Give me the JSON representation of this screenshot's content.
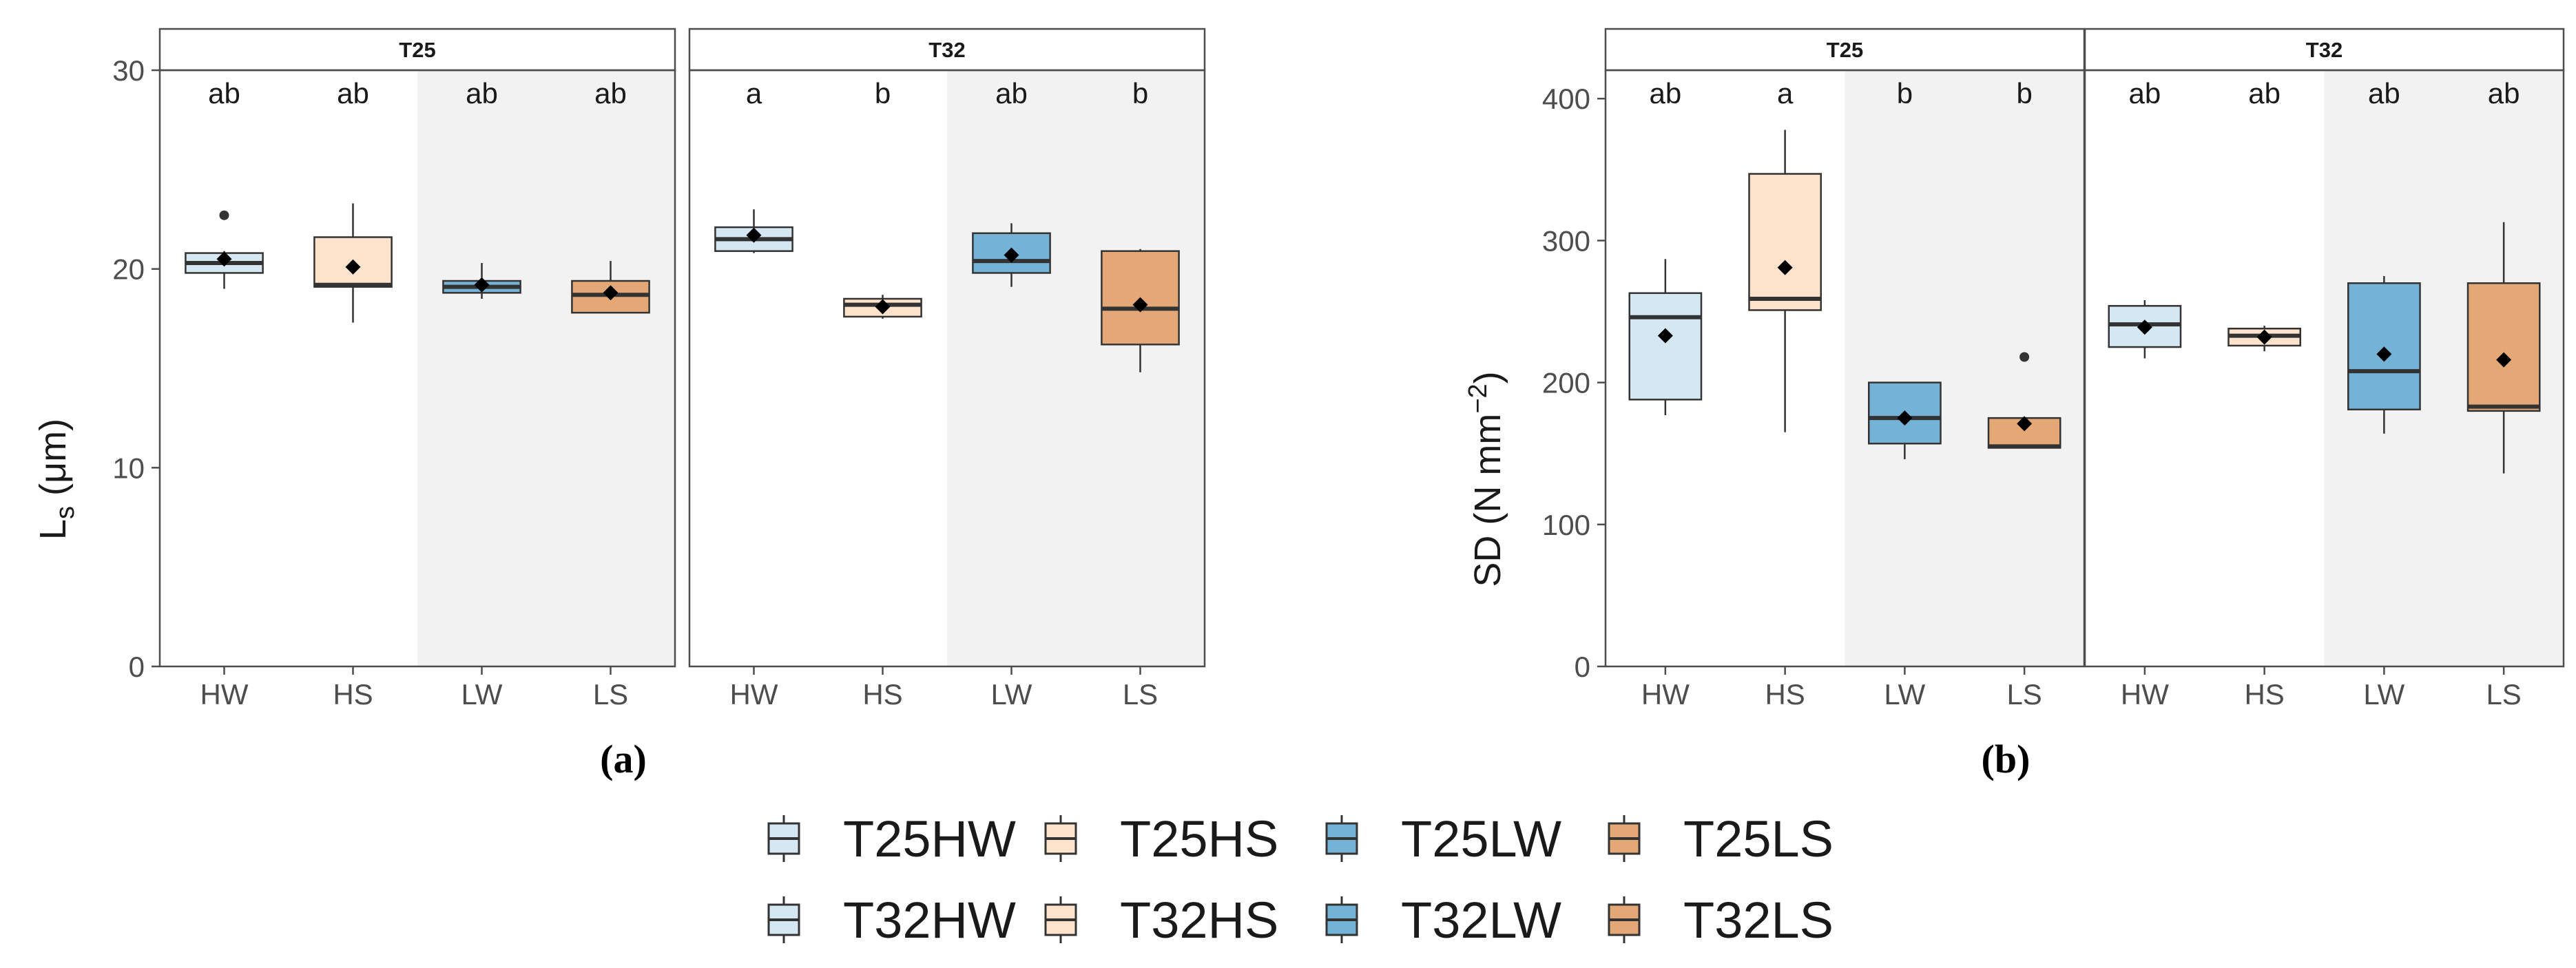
{
  "colors": {
    "HW": "#d4e7f3",
    "HS": "#fde3cc",
    "LW": "#74b2d6",
    "LS": "#e4a877",
    "shade": "#f2f2f2",
    "strip": "#ffffff",
    "border": "#4d4d4d",
    "median": "#333333",
    "text": "#1a1a1a",
    "axis_text": "#4d4d4d"
  },
  "chart_data": [
    {
      "id": "a",
      "type": "boxplot",
      "panel_label": "(a)",
      "ylabel_main": "L",
      "ylabel_sub": "s",
      "ylabel_unit": " (μm)",
      "ylim": [
        0,
        30
      ],
      "yticks": [
        0,
        10,
        20,
        30
      ],
      "categories": [
        "HW",
        "HS",
        "LW",
        "LS"
      ],
      "facets": [
        {
          "label": "T25",
          "letters": [
            "ab",
            "ab",
            "ab",
            "ab"
          ],
          "boxes": [
            {
              "cat": "HW",
              "min": 19.0,
              "q1": 19.8,
              "median": 20.3,
              "q3": 20.8,
              "max": 20.9,
              "mean": 20.5,
              "outliers": [
                22.7
              ]
            },
            {
              "cat": "HS",
              "min": 17.3,
              "q1": 19.1,
              "median": 19.2,
              "q3": 21.6,
              "max": 23.3,
              "mean": 20.1,
              "outliers": []
            },
            {
              "cat": "LW",
              "min": 18.5,
              "q1": 18.8,
              "median": 19.1,
              "q3": 19.4,
              "max": 20.3,
              "mean": 19.2,
              "outliers": []
            },
            {
              "cat": "LS",
              "min": 17.8,
              "q1": 17.8,
              "median": 18.7,
              "q3": 19.4,
              "max": 20.4,
              "mean": 18.8,
              "outliers": []
            }
          ]
        },
        {
          "label": "T32",
          "letters": [
            "a",
            "b",
            "ab",
            "b"
          ],
          "boxes": [
            {
              "cat": "HW",
              "min": 20.8,
              "q1": 20.9,
              "median": 21.5,
              "q3": 22.1,
              "max": 23.0,
              "mean": 21.7,
              "outliers": []
            },
            {
              "cat": "HS",
              "min": 17.5,
              "q1": 17.6,
              "median": 18.2,
              "q3": 18.5,
              "max": 18.7,
              "mean": 18.1,
              "outliers": []
            },
            {
              "cat": "LW",
              "min": 19.1,
              "q1": 19.8,
              "median": 20.4,
              "q3": 21.8,
              "max": 22.3,
              "mean": 20.7,
              "outliers": []
            },
            {
              "cat": "LS",
              "min": 14.8,
              "q1": 16.2,
              "median": 18.0,
              "q3": 20.9,
              "max": 21.0,
              "mean": 18.2,
              "outliers": []
            }
          ]
        }
      ]
    },
    {
      "id": "b",
      "type": "boxplot",
      "panel_label": "(b)",
      "ylabel_main": "SD (N mm",
      "ylabel_sup": "−2",
      "ylabel_end": ")",
      "ylim": [
        0,
        420
      ],
      "yticks": [
        0,
        100,
        200,
        300,
        400
      ],
      "categories": [
        "HW",
        "HS",
        "LW",
        "LS"
      ],
      "facets": [
        {
          "label": "T25",
          "letters": [
            "ab",
            "a",
            "b",
            "b"
          ],
          "boxes": [
            {
              "cat": "HW",
              "min": 177,
              "q1": 188,
              "median": 246,
              "q3": 263,
              "max": 287,
              "mean": 233,
              "outliers": []
            },
            {
              "cat": "HS",
              "min": 165,
              "q1": 251,
              "median": 259,
              "q3": 347,
              "max": 378,
              "mean": 281,
              "outliers": []
            },
            {
              "cat": "LW",
              "min": 146,
              "q1": 157,
              "median": 175,
              "q3": 200,
              "max": 200,
              "mean": 175,
              "outliers": []
            },
            {
              "cat": "LS",
              "min": 154,
              "q1": 154,
              "median": 155,
              "q3": 175,
              "max": 175,
              "mean": 171,
              "outliers": [
                218
              ]
            }
          ]
        },
        {
          "label": "T32",
          "letters": [
            "ab",
            "ab",
            "ab",
            "ab"
          ],
          "boxes": [
            {
              "cat": "HW",
              "min": 217,
              "q1": 225,
              "median": 241,
              "q3": 254,
              "max": 258,
              "mean": 239,
              "outliers": []
            },
            {
              "cat": "HS",
              "min": 222,
              "q1": 226,
              "median": 233,
              "q3": 238,
              "max": 240,
              "mean": 232,
              "outliers": []
            },
            {
              "cat": "LW",
              "min": 164,
              "q1": 181,
              "median": 208,
              "q3": 270,
              "max": 275,
              "mean": 220,
              "outliers": []
            },
            {
              "cat": "LS",
              "min": 136,
              "q1": 180,
              "median": 183,
              "q3": 270,
              "max": 313,
              "mean": 216,
              "outliers": []
            }
          ]
        }
      ]
    }
  ],
  "legend": [
    {
      "label": "T25HW",
      "cat": "HW"
    },
    {
      "label": "T25HS",
      "cat": "HS"
    },
    {
      "label": "T25LW",
      "cat": "LW"
    },
    {
      "label": "T25LS",
      "cat": "LS"
    },
    {
      "label": "T32HW",
      "cat": "HW"
    },
    {
      "label": "T32HS",
      "cat": "HS"
    },
    {
      "label": "T32LW",
      "cat": "LW"
    },
    {
      "label": "T32LS",
      "cat": "LS"
    }
  ]
}
